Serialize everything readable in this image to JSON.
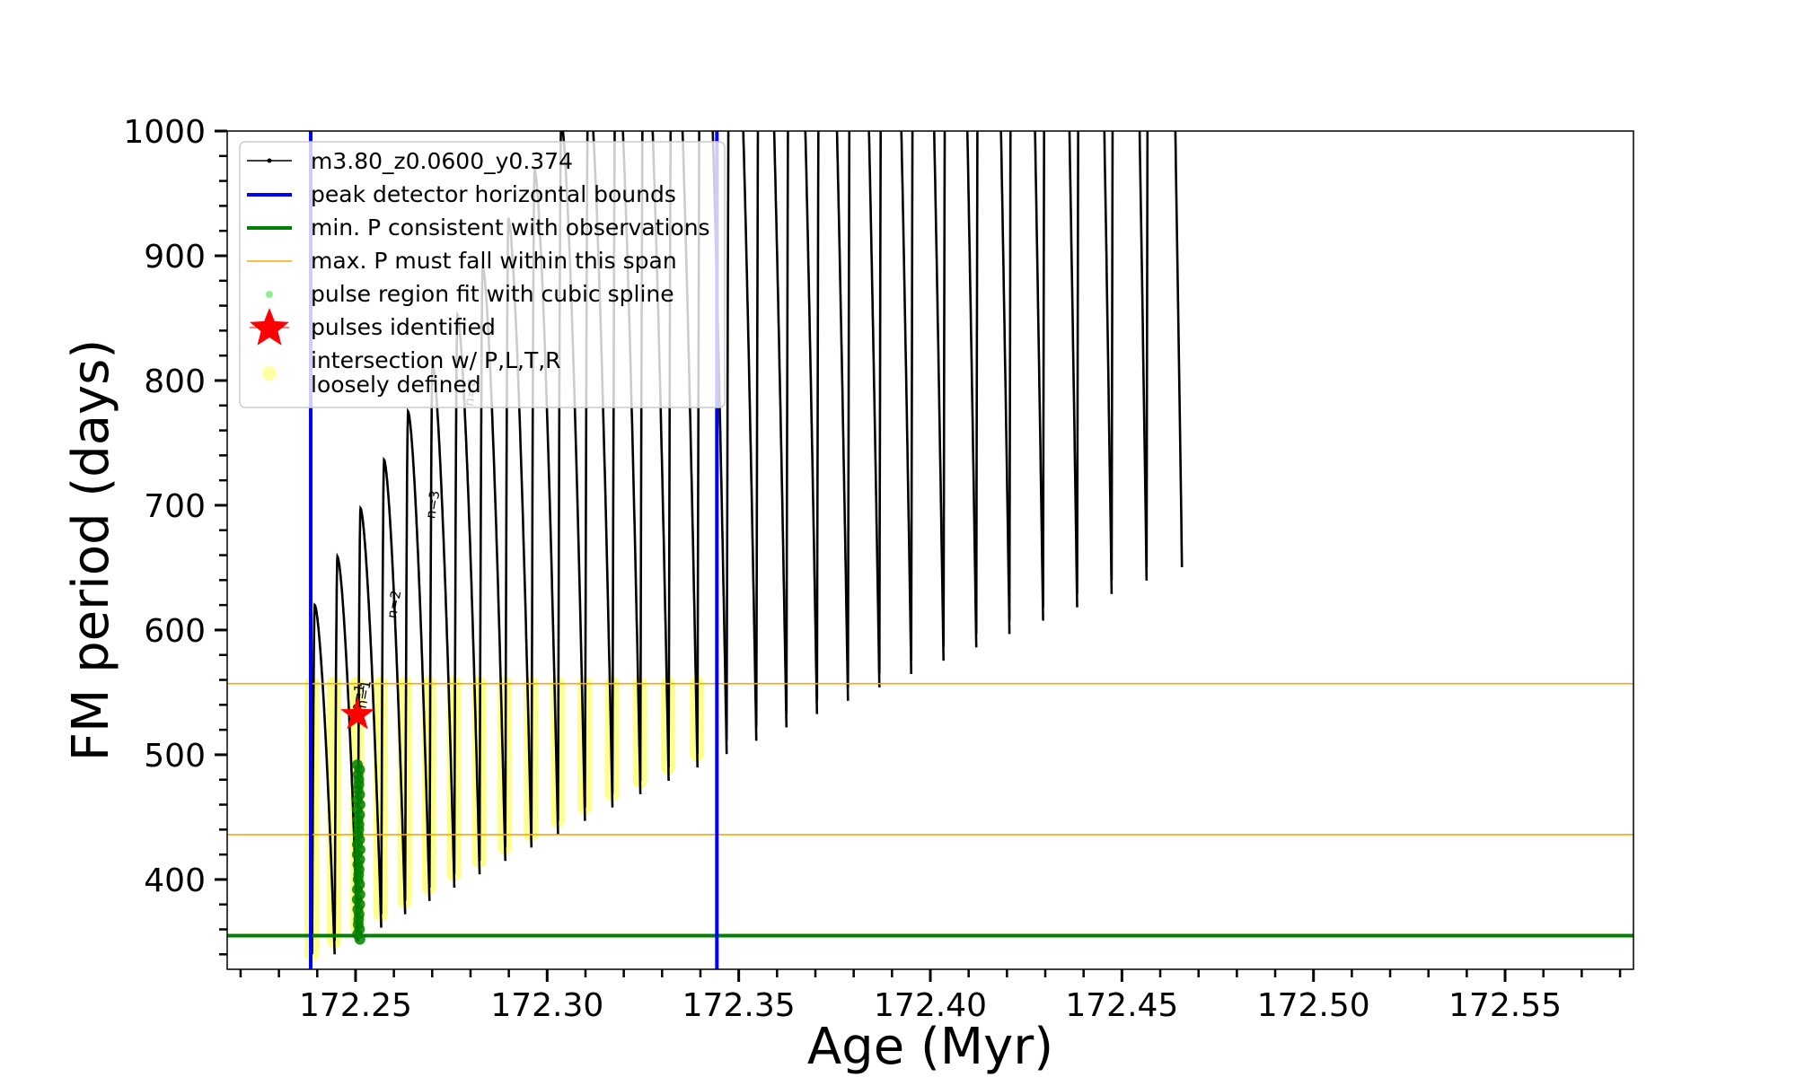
{
  "chart_data": {
    "type": "line",
    "xlabel": "Age (Myr)",
    "ylabel": "FM period (days)",
    "xlim": [
      172.2165,
      172.5835
    ],
    "ylim": [
      328,
      1000
    ],
    "xticks": [
      172.25,
      172.3,
      172.35,
      172.4,
      172.45,
      172.5,
      172.55
    ],
    "xtick_labels": [
      "172.25",
      "172.30",
      "172.35",
      "172.40",
      "172.45",
      "172.50",
      "172.55"
    ],
    "yticks": [
      400,
      500,
      600,
      700,
      800,
      900,
      1000
    ],
    "ytick_labels": [
      "400",
      "500",
      "600",
      "700",
      "800",
      "900",
      "1000"
    ],
    "legend_placement": "upper-left",
    "legend": [
      {
        "label": "m3.80_z0.0600_y0.374",
        "marker": "black-line-dot"
      },
      {
        "label": "peak detector horizontal bounds",
        "marker": "blue-line"
      },
      {
        "label": "min. P consistent with observations",
        "marker": "green-line"
      },
      {
        "label": "max. P must fall within this span",
        "marker": "orange-line"
      },
      {
        "label": "pulse region fit with cubic spline",
        "marker": "lightgreen-dot"
      },
      {
        "label": "pulses identified",
        "marker": "red-star"
      },
      {
        "label": "intersection w/ P,L,T,R",
        "label_line2": "loosely defined",
        "marker": "yellow-dot"
      }
    ],
    "colors": {
      "model_track": "#000000",
      "peak_bounds": "#0000ff",
      "min_period": "#008000",
      "max_period_span": "#ffa500",
      "spline_fit": "#90ee90",
      "pulse_star": "#ff0000",
      "intersection": "#ffff66",
      "spline_points": "#008000"
    },
    "vertical_lines": {
      "peak_detector_bounds": [
        172.2383,
        172.3443
      ]
    },
    "horizontal_lines": {
      "min_period": 355,
      "max_period_span": [
        436,
        557
      ]
    },
    "pulses": {
      "start_age": 172.2383,
      "first_spacing": 0.0059,
      "spacing_growth": 0.000115,
      "max_period_start": 620,
      "max_period_step": 38.8,
      "min_period_start": 340,
      "min_period_step": 10.7,
      "count": 30,
      "ordinal_labels": [
        "n=1",
        "n=2",
        "n=3",
        "n=4"
      ]
    },
    "pulse_identified": {
      "x": 172.2505,
      "y": 532,
      "label": "n=1"
    },
    "spline_fit_region": {
      "x": 172.2508,
      "y_range": [
        352,
        495
      ]
    }
  }
}
